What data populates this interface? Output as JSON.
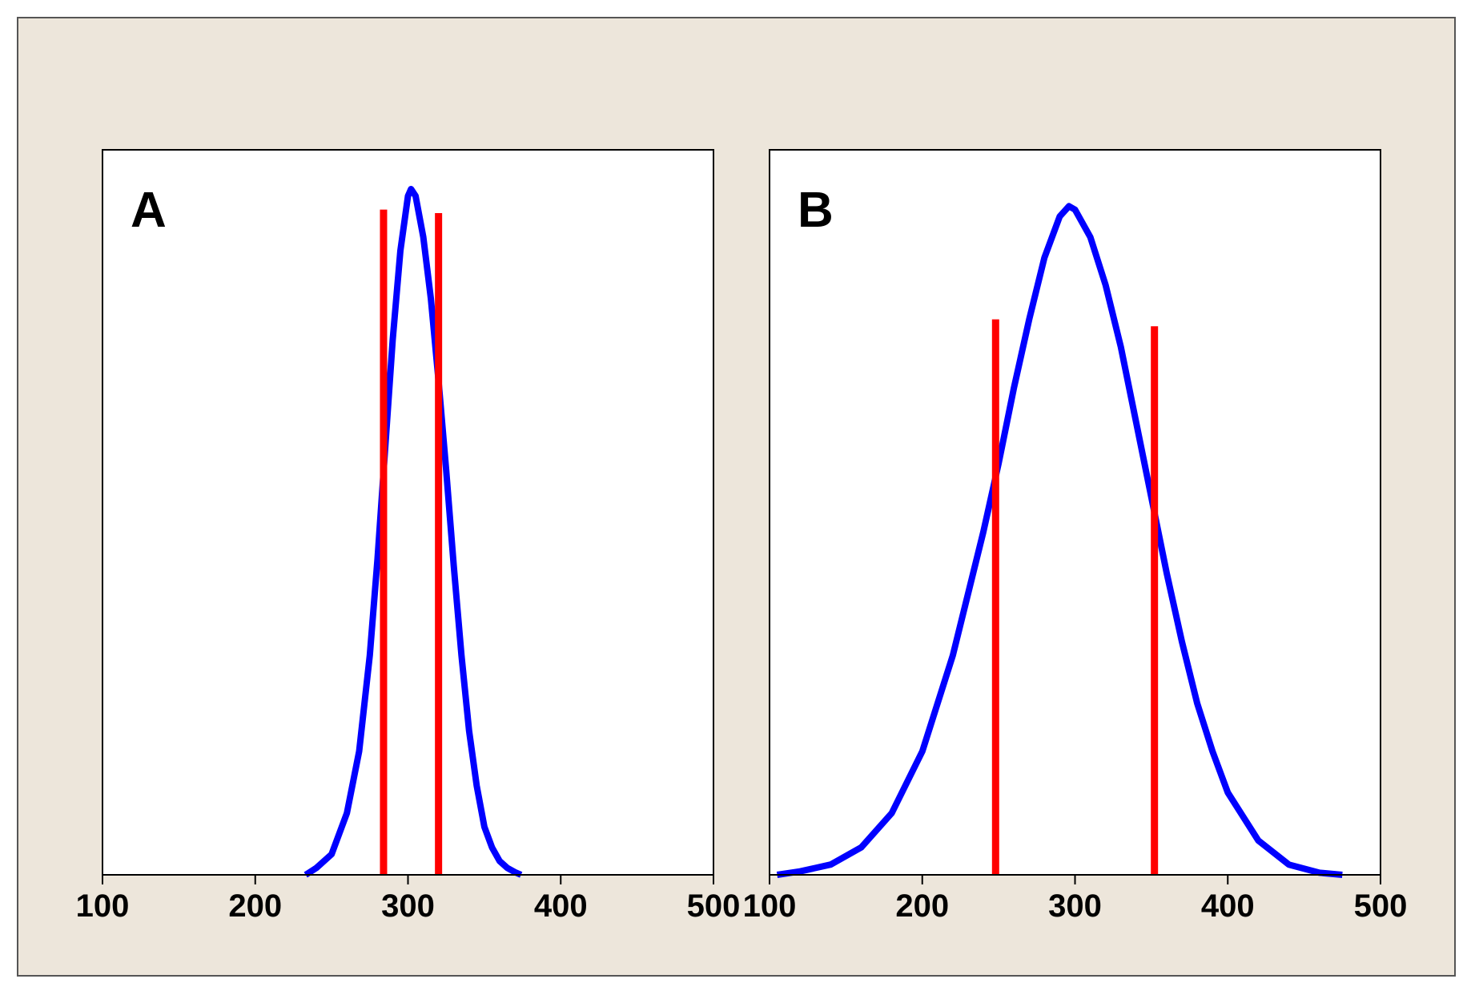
{
  "figure": {
    "background": "#ede6db",
    "border_color": "#555555"
  },
  "chart_data": [
    {
      "type": "line",
      "panel_label": "A",
      "xlim": [
        100,
        500
      ],
      "xticks": [
        "100",
        "200",
        "300",
        "400",
        "500"
      ],
      "grid": false,
      "curve_color": "#0000ff",
      "marker_color": "#ff0000",
      "series": [
        {
          "x": [
            233,
            240,
            250,
            260,
            268,
            275,
            280,
            285,
            290,
            295,
            300,
            302,
            305,
            310,
            315,
            320,
            325,
            330,
            335,
            340,
            345,
            350,
            355,
            360,
            365,
            370,
            374
          ],
          "y": [
            0.0,
            0.01,
            0.03,
            0.09,
            0.18,
            0.32,
            0.46,
            0.62,
            0.78,
            0.91,
            0.99,
            1.0,
            0.99,
            0.93,
            0.84,
            0.72,
            0.59,
            0.45,
            0.32,
            0.21,
            0.13,
            0.07,
            0.04,
            0.02,
            0.01,
            0.004,
            0.0
          ]
        }
      ],
      "vlines": [
        {
          "x": 284,
          "y_top": 0.97
        },
        {
          "x": 320,
          "y_top": 0.965
        }
      ]
    },
    {
      "type": "line",
      "panel_label": "B",
      "xlim": [
        100,
        500
      ],
      "xticks": [
        "100",
        "200",
        "300",
        "400",
        "500"
      ],
      "grid": false,
      "curve_color": "#0000ff",
      "marker_color": "#ff0000",
      "series": [
        {
          "x": [
            105,
            120,
            140,
            160,
            180,
            200,
            220,
            240,
            250,
            260,
            270,
            280,
            290,
            296,
            300,
            310,
            320,
            330,
            340,
            350,
            360,
            370,
            380,
            390,
            400,
            420,
            440,
            460,
            475
          ],
          "y": [
            0.0,
            0.005,
            0.015,
            0.04,
            0.09,
            0.18,
            0.32,
            0.5,
            0.6,
            0.71,
            0.81,
            0.9,
            0.96,
            0.975,
            0.97,
            0.93,
            0.86,
            0.77,
            0.66,
            0.55,
            0.44,
            0.34,
            0.25,
            0.18,
            0.12,
            0.05,
            0.015,
            0.003,
            0.0
          ]
        }
      ],
      "vlines": [
        {
          "x": 248,
          "y_top": 0.81
        },
        {
          "x": 352,
          "y_top": 0.8
        }
      ]
    }
  ]
}
